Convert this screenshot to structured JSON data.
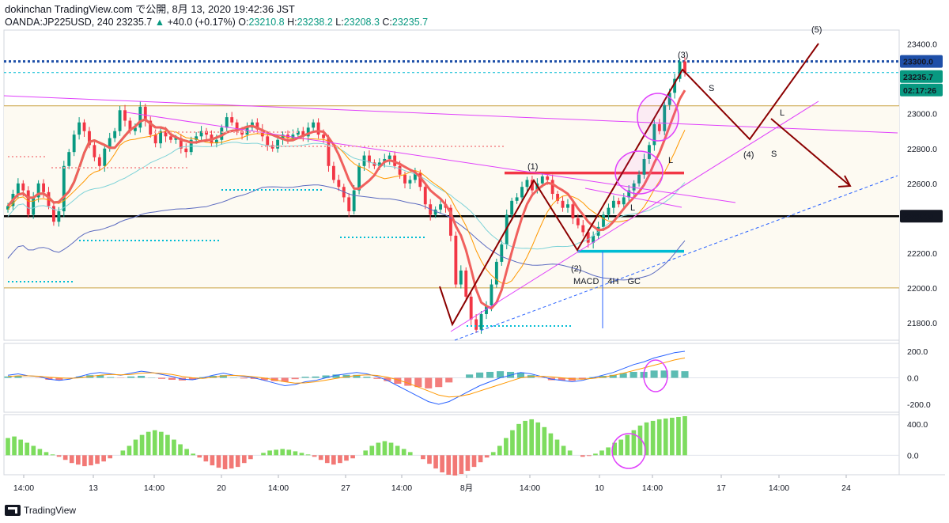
{
  "header": {
    "line1": "dokinchan TradingView.com で公開, 8月 13, 2020 19:42:36 JST",
    "symbol": "OANDA:JP225USD, 240",
    "last": "23235.7",
    "change": "+40.0 (+0.17%)",
    "o_label": "O:",
    "o": "23210.8",
    "h_label": "H:",
    "h": "23238.2",
    "l_label": "L:",
    "l": "23208.3",
    "c_label": "C:",
    "c": "23235.7"
  },
  "footer": {
    "brand": "TradingView"
  },
  "colors": {
    "candle_up": "#089981",
    "candle_down": "#f23645",
    "accent_red": "#8b0000",
    "magenta": "#e040fb",
    "cyan": "#00bcd4",
    "ma_green": "#66d642",
    "ma_red": "#f0605d",
    "ma_orange": "#ff9800",
    "ma_teal": "#7fd3d8",
    "ma_blue": "#5c6bc0"
  },
  "annotations": {
    "wave": [
      "(1)",
      "(2)",
      "(3)",
      "(4)",
      "(5)"
    ],
    "macd_note": "MACD　4H　GC",
    "letters": [
      "S",
      "L",
      "L",
      "L",
      "S"
    ]
  },
  "chart_data": [
    {
      "type": "candlestick",
      "title": "",
      "price_axis": {
        "ticks": [
          21800,
          22000,
          22200,
          22400,
          22600,
          22800,
          23000,
          23200,
          23400
        ],
        "ylim": [
          21700,
          23480
        ]
      },
      "price_badges": [
        "23300.0",
        "23235.7",
        "02:17:26",
        "22412.0"
      ],
      "time_axis": [
        "14:00",
        "13",
        "14:00",
        "20",
        "14:00",
        "27",
        "14:00",
        "8月",
        "14:00",
        "10",
        "14:00",
        "17",
        "14:00",
        "24"
      ],
      "close": [
        22470,
        22540,
        22600,
        22560,
        22420,
        22520,
        22600,
        22550,
        22470,
        22380,
        22440,
        22700,
        22780,
        22880,
        22950,
        22900,
        22820,
        22750,
        22700,
        22800,
        22860,
        22900,
        23020,
        22960,
        22900,
        22920,
        23040,
        22960,
        22880,
        22830,
        22900,
        22870,
        22850,
        22860,
        22800,
        22780,
        22850,
        22870,
        22900,
        22880,
        22830,
        22850,
        22920,
        22980,
        22950,
        22900,
        22880,
        22920,
        22950,
        22910,
        22870,
        22820,
        22800,
        22850,
        22880,
        22860,
        22880,
        22900,
        22870,
        22920,
        22950,
        22880,
        22860,
        22700,
        22620,
        22580,
        22520,
        22440,
        22560,
        22700,
        22760,
        22720,
        22700,
        22720,
        22740,
        22760,
        22700,
        22650,
        22600,
        22620,
        22660,
        22580,
        22480,
        22420,
        22450,
        22480,
        22460,
        22300,
        22020,
        22100,
        21950,
        21820,
        21760,
        21850,
        21900,
        22020,
        22150,
        22250,
        22420,
        22500,
        22520,
        22580,
        22620,
        22560,
        22600,
        22640,
        22620,
        22540,
        22500,
        22460,
        22480,
        22400,
        22360,
        22320,
        22260,
        22300,
        22350,
        22420,
        22460,
        22500,
        22480,
        22520,
        22560,
        22600,
        22650,
        22740,
        22820,
        22940,
        22900,
        23050,
        23120,
        23200,
        23300,
        23236
      ],
      "levels": [
        {
          "value": 23300.0,
          "style": "dotted",
          "color": "#1e4fa8"
        },
        {
          "value": 23235.7,
          "style": "dotted",
          "color": "#00bcd4"
        },
        {
          "value": 23045,
          "style": "solid",
          "color": "#c8a040"
        },
        {
          "value": 22412.0,
          "style": "solid",
          "color": "#000000"
        },
        {
          "value": 22000,
          "style": "solid",
          "color": "#c8a040"
        },
        {
          "value": 22660,
          "style": "solid",
          "color": "#f23645"
        },
        {
          "value": 22210,
          "style": "solid",
          "color": "#00bcd4"
        }
      ]
    },
    {
      "type": "line",
      "title": "",
      "axis_ticks": [
        "200.0",
        "0.0",
        "-200.0"
      ],
      "ylim": [
        -260,
        260
      ],
      "series": [
        {
          "values": [
            20,
            30,
            15,
            10,
            -10,
            -20,
            -10,
            10,
            30,
            40,
            30,
            20,
            35,
            50,
            40,
            25,
            10,
            -10,
            -15,
            0,
            20,
            35,
            20,
            10,
            0,
            -20,
            -40,
            -60,
            -50,
            -30,
            -20,
            0,
            20,
            30,
            40,
            30,
            10,
            -20,
            -60,
            -100,
            -140,
            -180,
            -200,
            -180,
            -140,
            -100,
            -60,
            -30,
            0,
            20,
            40,
            30,
            10,
            -10,
            -20,
            -30,
            -20,
            0,
            20,
            40,
            70,
            100,
            120,
            150,
            170,
            190,
            200
          ]
        },
        {
          "values": [
            10,
            15,
            15,
            12,
            5,
            0,
            -5,
            0,
            10,
            20,
            25,
            22,
            25,
            35,
            38,
            33,
            25,
            10,
            0,
            -5,
            5,
            15,
            18,
            15,
            8,
            -2,
            -15,
            -30,
            -40,
            -38,
            -30,
            -18,
            -5,
            8,
            18,
            22,
            18,
            5,
            -15,
            -40,
            -70,
            -100,
            -130,
            -145,
            -140,
            -125,
            -100,
            -75,
            -50,
            -25,
            0,
            10,
            12,
            8,
            0,
            -8,
            -10,
            -5,
            5,
            18,
            35,
            55,
            75,
            95,
            115,
            135,
            150
          ]
        }
      ],
      "histogram": [
        10,
        15,
        0,
        -2,
        -15,
        -20,
        -5,
        10,
        20,
        20,
        5,
        -2,
        10,
        15,
        2,
        -8,
        -15,
        -20,
        -15,
        5,
        15,
        20,
        2,
        -5,
        -8,
        -18,
        -25,
        -30,
        -10,
        8,
        10,
        18,
        25,
        22,
        22,
        8,
        -8,
        -25,
        -45,
        -60,
        -70,
        -80,
        -70,
        -35,
        0,
        25,
        40,
        45,
        50,
        45,
        40,
        20,
        -2,
        -18,
        -20,
        -22,
        -10,
        5,
        15,
        22,
        35,
        45,
        45,
        55,
        55,
        55,
        50
      ]
    },
    {
      "type": "bar",
      "title": "",
      "axis_ticks": [
        "400.0",
        "0.0"
      ],
      "ylim": [
        -250,
        520
      ],
      "values": [
        220,
        240,
        200,
        160,
        120,
        80,
        40,
        10,
        -20,
        -60,
        -100,
        -120,
        -140,
        -130,
        -110,
        -80,
        -40,
        0,
        60,
        120,
        200,
        260,
        300,
        320,
        300,
        260,
        200,
        140,
        80,
        20,
        -30,
        -80,
        -130,
        -160,
        -180,
        -170,
        -150,
        -100,
        -50,
        0,
        30,
        60,
        70,
        80,
        70,
        50,
        30,
        10,
        -20,
        -60,
        -100,
        -120,
        -100,
        -70,
        -40,
        0,
        60,
        120,
        160,
        180,
        160,
        120,
        80,
        40,
        0,
        -50,
        -110,
        -170,
        -220,
        -250,
        -260,
        -240,
        -200,
        -150,
        -90,
        -30,
        40,
        120,
        220,
        320,
        400,
        440,
        460,
        420,
        360,
        280,
        200,
        120,
        60,
        0,
        -20,
        -10,
        20,
        60,
        100,
        160,
        200,
        260,
        320,
        380,
        420,
        440,
        460,
        470,
        480,
        490,
        500
      ]
    }
  ]
}
